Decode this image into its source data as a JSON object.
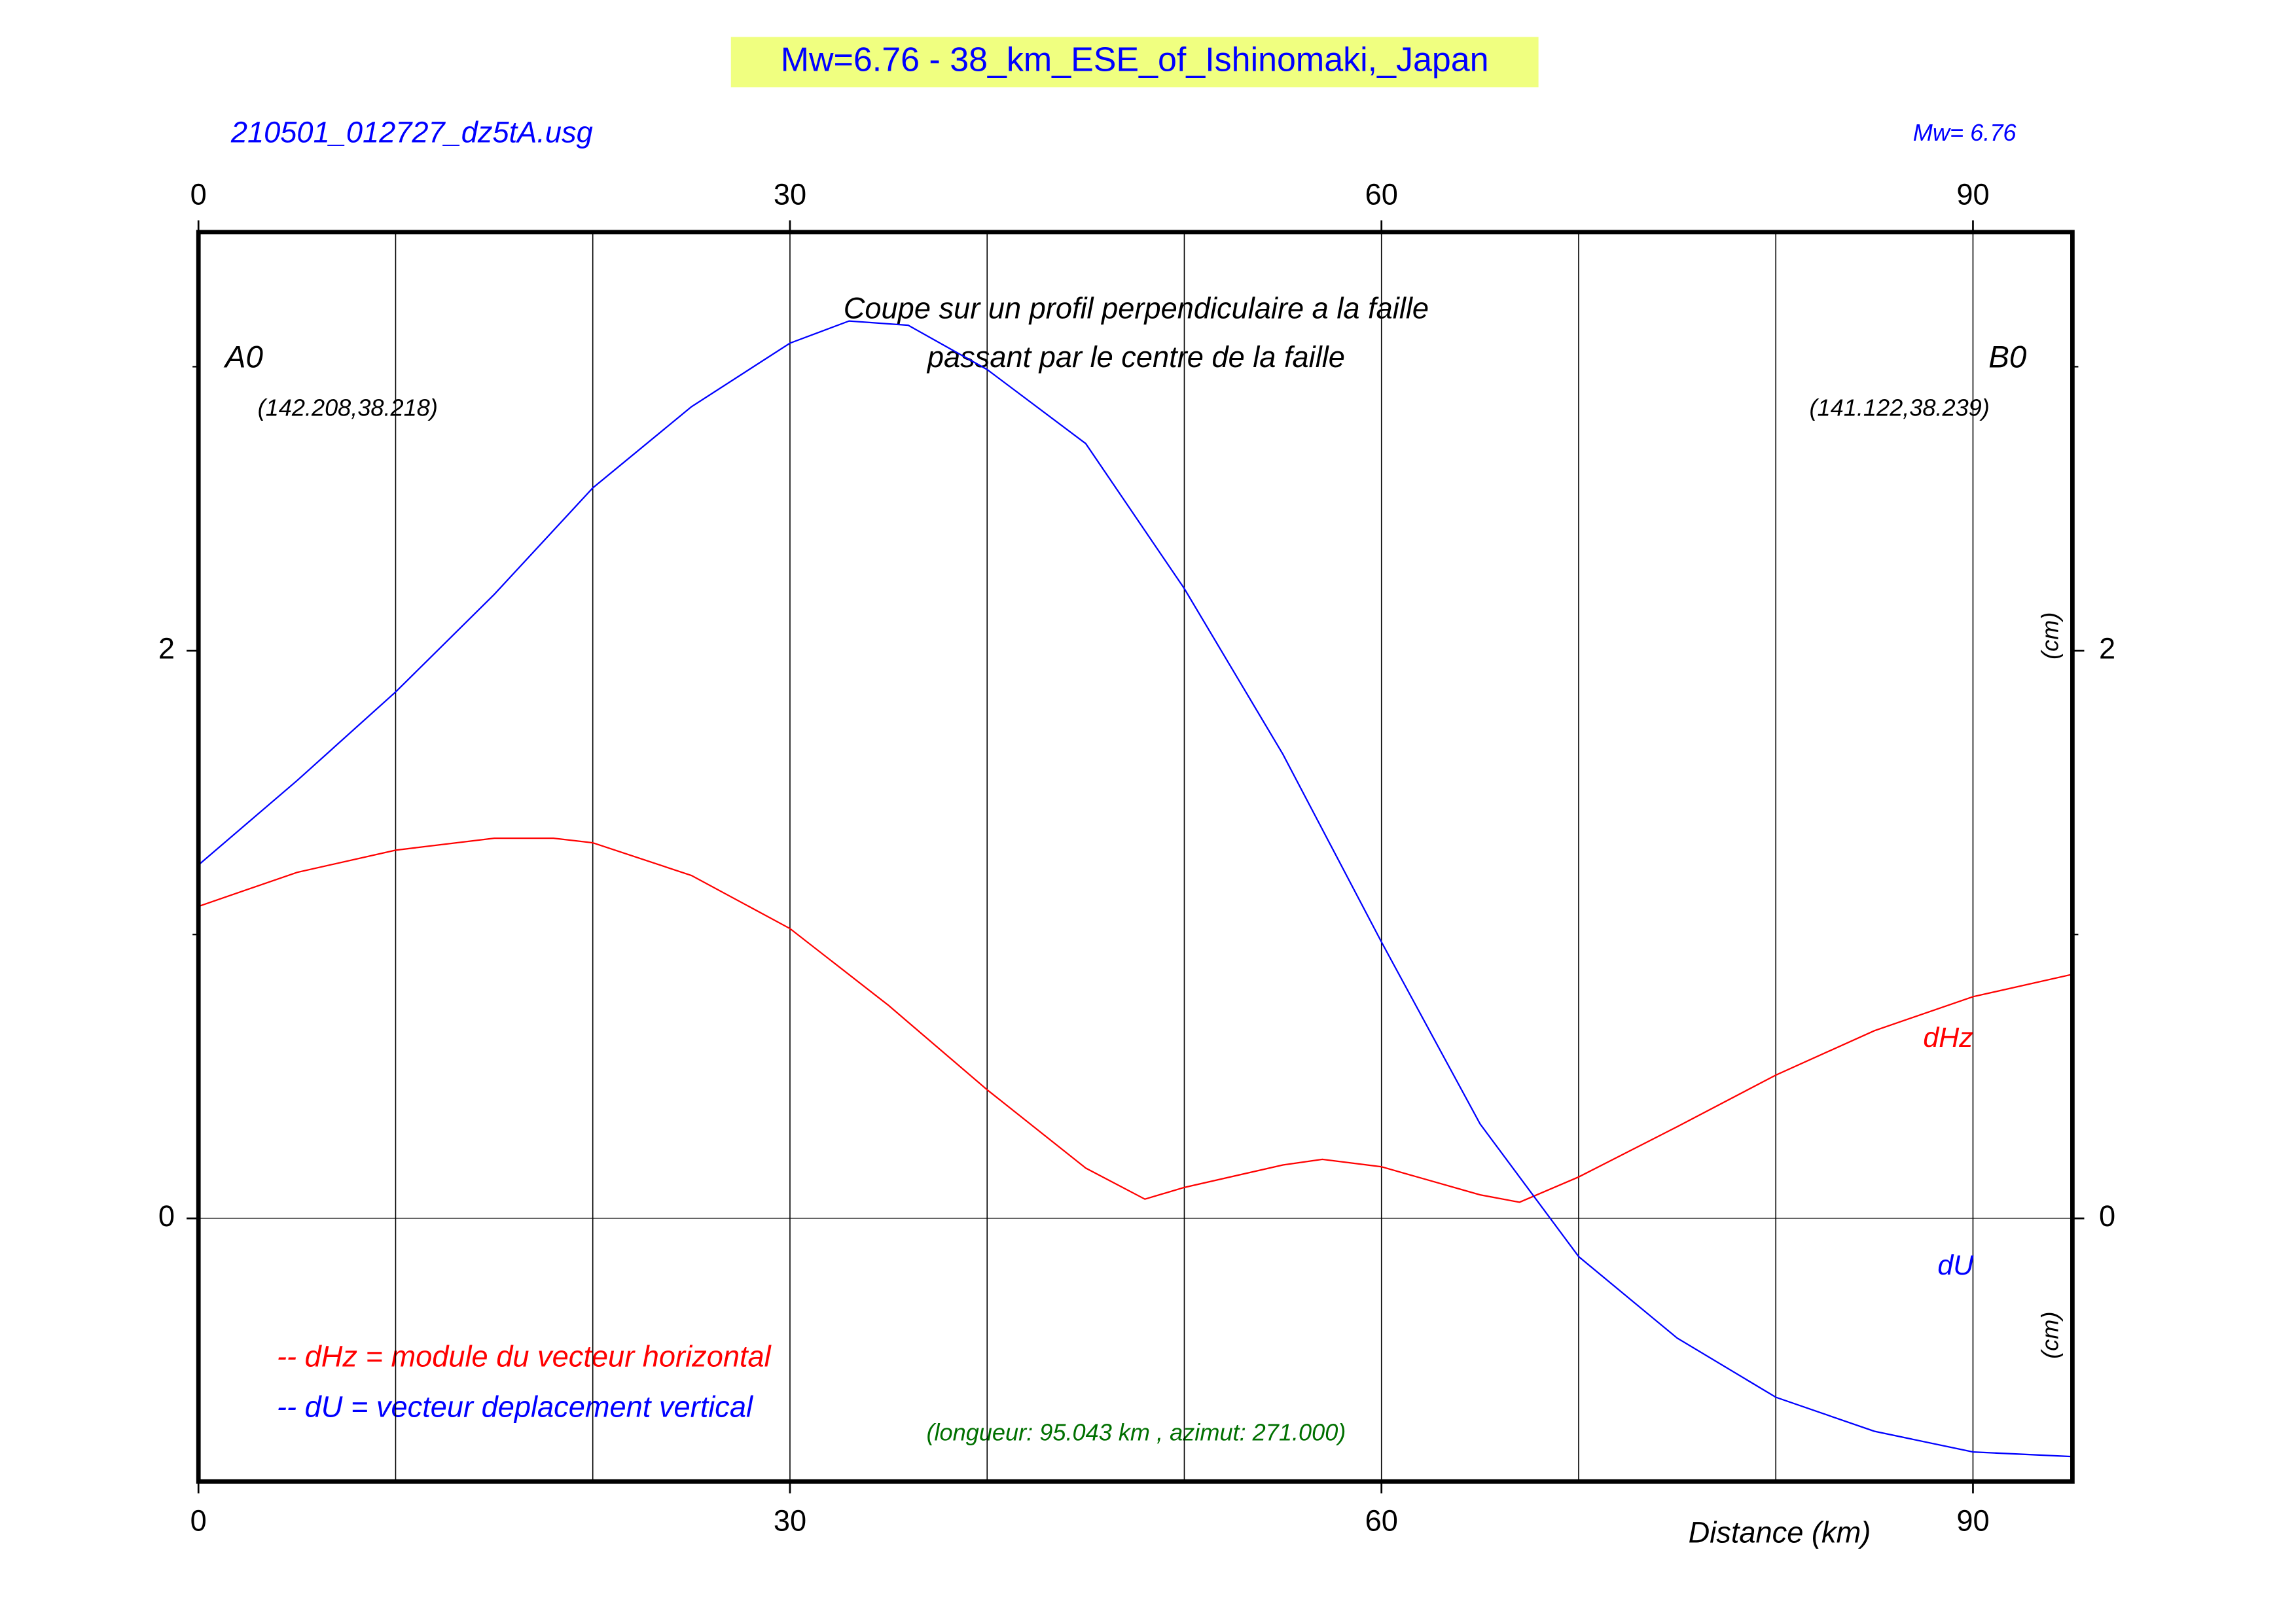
{
  "chart_data": {
    "type": "line",
    "title": "Mw=6.76 - 38_km_ESE_of_Ishinomaki,_Japan",
    "file_label": "210501_012727_dz5tA.usg",
    "magnitude_label": "Mw= 6.76",
    "annotation": [
      "Coupe sur un profil perpendiculaire a la faille",
      "passant par le centre de la faille"
    ],
    "start_label": "A0",
    "start_coords": "(142.208,38.218)",
    "end_label": "B0",
    "end_coords": "(141.122,38.239)",
    "profile_info": "(longueur: 95.043 km , azimut: 271.000)",
    "x_label": "Distance (km)",
    "y_unit_labels": [
      "(cm)",
      "(cm)"
    ],
    "legend": [
      "-- dHz = module du vecteur horizontal",
      "-- dU =  vecteur deplacement vertical"
    ],
    "xlim": [
      0,
      95.043
    ],
    "xticks": [
      0,
      30,
      60,
      90
    ],
    "xgrid": [
      10,
      20,
      30,
      40,
      50,
      60,
      70,
      80,
      90
    ],
    "ylim": [
      -0.927,
      3.474
    ],
    "yticks": [
      0,
      2
    ],
    "yminor_ticks": [
      1,
      3
    ],
    "series": [
      {
        "name": "dHz",
        "color": "#ff0000",
        "x": [
          0,
          5,
          10,
          15,
          18,
          20,
          25,
          30,
          35,
          40,
          45,
          48,
          50,
          55,
          57,
          60,
          65,
          67,
          70,
          75,
          80,
          85,
          90,
          95
        ],
        "values": [
          1.099,
          1.219,
          1.297,
          1.339,
          1.339,
          1.323,
          1.208,
          1.021,
          0.75,
          0.453,
          0.177,
          0.068,
          0.109,
          0.188,
          0.208,
          0.182,
          0.083,
          0.057,
          0.146,
          0.323,
          0.505,
          0.661,
          0.781,
          0.859
        ]
      },
      {
        "name": "dU",
        "color": "#0000ff",
        "x": [
          0,
          5,
          10,
          15,
          20,
          25,
          30,
          33,
          36,
          40,
          45,
          50,
          55,
          60,
          65,
          70,
          75,
          80,
          85,
          90,
          95
        ],
        "values": [
          1.245,
          1.542,
          1.854,
          2.198,
          2.573,
          2.859,
          3.083,
          3.161,
          3.146,
          2.99,
          2.729,
          2.219,
          1.635,
          0.974,
          0.333,
          -0.135,
          -0.422,
          -0.63,
          -0.75,
          -0.823,
          -0.839
        ]
      }
    ]
  }
}
